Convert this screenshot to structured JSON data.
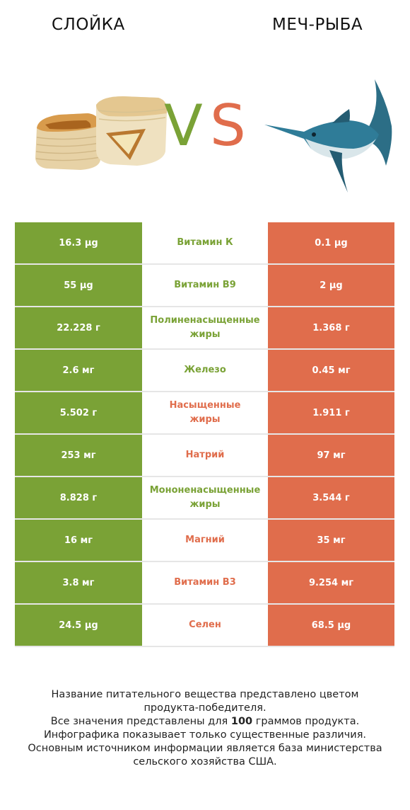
{
  "header": {
    "left_title": "СЛОЙКА",
    "right_title": "МЕЧ-РЫБА",
    "vs_v": "V",
    "vs_s": "S"
  },
  "colors": {
    "left_winner": "#7aa236",
    "right_winner": "#e06d4c"
  },
  "rows": [
    {
      "left": "16.3 µg",
      "name_line1": "Витамин К",
      "name_line2": "",
      "right": "0.1 µg",
      "winner": "left"
    },
    {
      "left": "55 µg",
      "name_line1": "Витамин B9",
      "name_line2": "",
      "right": "2 µg",
      "winner": "left"
    },
    {
      "left": "22.228 г",
      "name_line1": "Полиненасыщенные",
      "name_line2": "жиры",
      "right": "1.368 г",
      "winner": "left"
    },
    {
      "left": "2.6 мг",
      "name_line1": "Железо",
      "name_line2": "",
      "right": "0.45 мг",
      "winner": "left"
    },
    {
      "left": "5.502 г",
      "name_line1": "Насыщенные",
      "name_line2": "жиры",
      "right": "1.911 г",
      "winner": "right"
    },
    {
      "left": "253 мг",
      "name_line1": "Натрий",
      "name_line2": "",
      "right": "97 мг",
      "winner": "right"
    },
    {
      "left": "8.828 г",
      "name_line1": "Мононенасыщенные",
      "name_line2": "жиры",
      "right": "3.544 г",
      "winner": "left"
    },
    {
      "left": "16 мг",
      "name_line1": "Магний",
      "name_line2": "",
      "right": "35 мг",
      "winner": "right"
    },
    {
      "left": "3.8 мг",
      "name_line1": "Витамин B3",
      "name_line2": "",
      "right": "9.254 мг",
      "winner": "right"
    },
    {
      "left": "24.5 µg",
      "name_line1": "Селен",
      "name_line2": "",
      "right": "68.5 µg",
      "winner": "right"
    }
  ],
  "footer": {
    "line1": "Название питательного вещества представлено цветом",
    "line2": "продукта-победителя.",
    "line3_pre": "Все значения представлены для ",
    "line3_bold": "100",
    "line3_post": " граммов продукта.",
    "line4": "Инфографика показывает только существенные различия.",
    "line5": "Основным источником информации является база министерства",
    "line6": "сельского хозяйства США."
  }
}
